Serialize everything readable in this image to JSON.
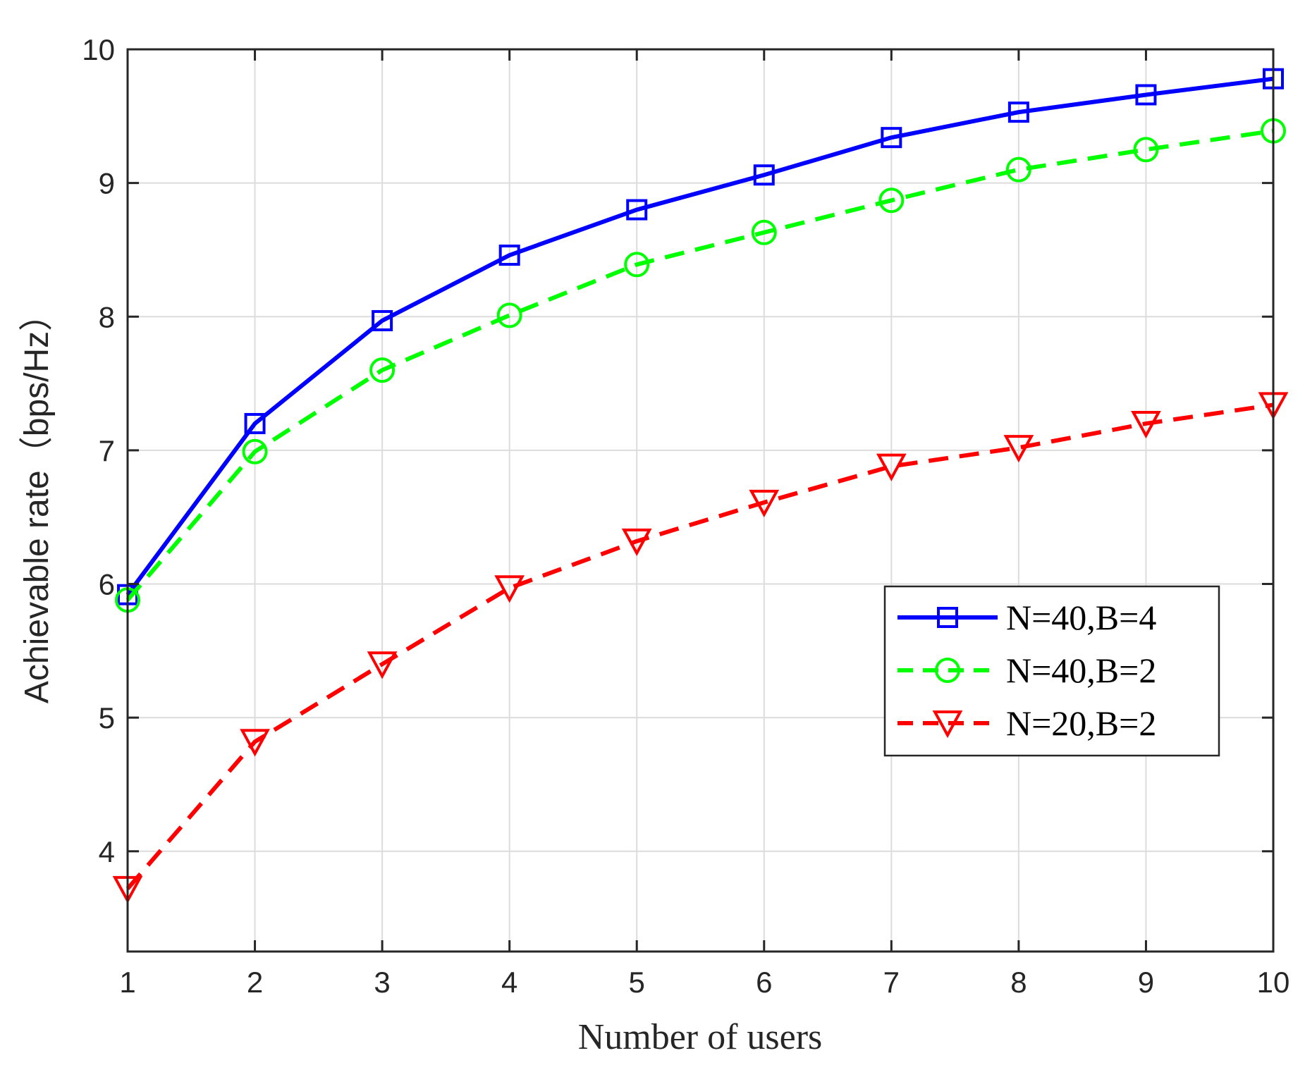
{
  "chart_data": {
    "type": "line",
    "xlabel": "Number of users",
    "ylabel": "Achievable rate（bps/Hz）",
    "x": [
      1,
      2,
      3,
      4,
      5,
      6,
      7,
      8,
      9,
      10
    ],
    "xlim": [
      1,
      10
    ],
    "ylim": [
      3.25,
      10
    ],
    "xticks": [
      "1",
      "2",
      "3",
      "4",
      "5",
      "6",
      "7",
      "8",
      "9",
      "10"
    ],
    "yticks": [
      "4",
      "5",
      "6",
      "7",
      "8",
      "9",
      "10"
    ],
    "grid": true,
    "legend_position": "right",
    "series": [
      {
        "name": "N=40,B=4",
        "color": "#0000ff",
        "line_style": "solid",
        "marker": "square",
        "values": [
          5.92,
          7.2,
          7.97,
          8.46,
          8.8,
          9.06,
          9.34,
          9.53,
          9.66,
          9.78
        ]
      },
      {
        "name": "N=40,B=2",
        "color": "#00ff00",
        "line_style": "dashed",
        "marker": "circle",
        "values": [
          5.88,
          6.99,
          7.6,
          8.01,
          8.39,
          8.63,
          8.87,
          9.1,
          9.25,
          9.39
        ]
      },
      {
        "name": "N=20,B=2",
        "color": "#ff0000",
        "line_style": "dashed",
        "marker": "triangle-down",
        "values": [
          3.72,
          4.82,
          5.4,
          5.97,
          6.32,
          6.61,
          6.88,
          7.02,
          7.2,
          7.34
        ]
      }
    ]
  }
}
